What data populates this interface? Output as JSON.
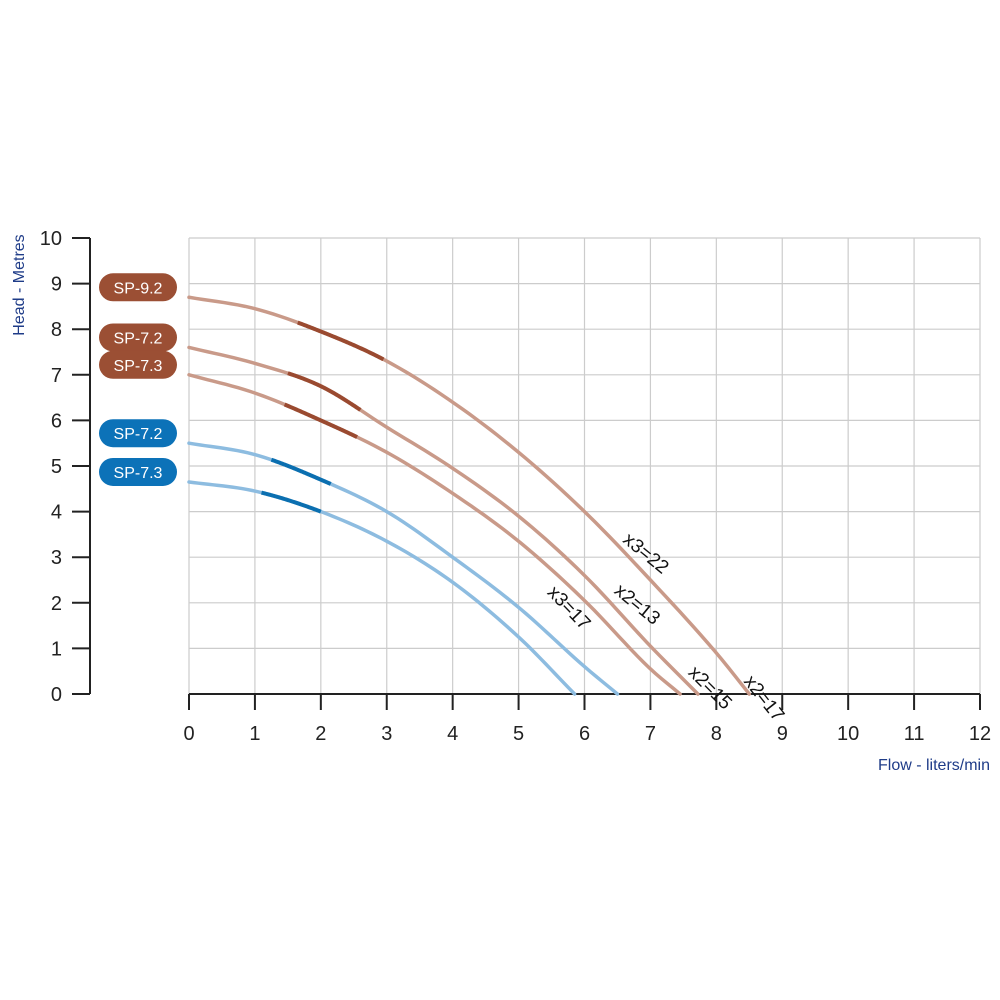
{
  "colors": {
    "brown_curve": "#C99A89",
    "brown_highlight": "#9A4A30",
    "brown_badge": "#9B4F34",
    "blue_curve": "#8DBCE0",
    "blue_highlight": "#0B6FB0",
    "blue_badge": "#0C72B8",
    "grid": "#CCCCCC",
    "axis": "#222222",
    "axis_title": "#1F3C88"
  },
  "chart_data": {
    "type": "line",
    "xlabel": "Flow - liters/min",
    "ylabel": "Head - Metres",
    "xlim": [
      0,
      12
    ],
    "ylim": [
      0,
      10
    ],
    "x_ticks": [
      "0",
      "1",
      "2",
      "3",
      "4",
      "5",
      "6",
      "7",
      "8",
      "9",
      "10",
      "11",
      "12"
    ],
    "y_ticks": [
      "0",
      "1",
      "2",
      "3",
      "4",
      "5",
      "6",
      "7",
      "8",
      "9",
      "10"
    ],
    "grid": true,
    "series": [
      {
        "name": "SP-9.2",
        "group": "brown",
        "label": "x2=17",
        "x": [
          0,
          1,
          2,
          3,
          4,
          5,
          6,
          7,
          8,
          8.5
        ],
        "y": [
          8.7,
          8.45,
          7.95,
          7.3,
          6.4,
          5.3,
          4.0,
          2.5,
          0.9,
          0
        ],
        "highlight": [
          1.65,
          2.95
        ]
      },
      {
        "name": "SP-7.2",
        "group": "brown",
        "label": "x2=15",
        "x": [
          0,
          1,
          2,
          3,
          4,
          5,
          6,
          7,
          7.72
        ],
        "y": [
          7.6,
          7.25,
          6.75,
          5.85,
          4.95,
          3.9,
          2.6,
          1.05,
          0
        ],
        "highlight": [
          1.5,
          2.6
        ]
      },
      {
        "name": "SP-7.3",
        "group": "brown",
        "label": "x3=22",
        "x": [
          0,
          1,
          2,
          3,
          4,
          5,
          6,
          7,
          7.45
        ],
        "y": [
          7.0,
          6.6,
          6.0,
          5.3,
          4.4,
          3.35,
          2.05,
          0.55,
          0
        ],
        "highlight": [
          1.45,
          2.55
        ]
      },
      {
        "name": "SP-7.2",
        "group": "blue",
        "label": "x2=13",
        "x": [
          0,
          1,
          2,
          3,
          4,
          5,
          6,
          6.5
        ],
        "y": [
          5.5,
          5.25,
          4.7,
          4.0,
          3.0,
          1.9,
          0.6,
          0
        ],
        "highlight": [
          1.25,
          2.15
        ]
      },
      {
        "name": "SP-7.3",
        "group": "blue",
        "label": "x3=17",
        "x": [
          0,
          1,
          2,
          3,
          4,
          5,
          5.85
        ],
        "y": [
          4.65,
          4.45,
          4.0,
          3.35,
          2.45,
          1.25,
          0
        ],
        "highlight": [
          1.1,
          2.0
        ]
      }
    ]
  }
}
